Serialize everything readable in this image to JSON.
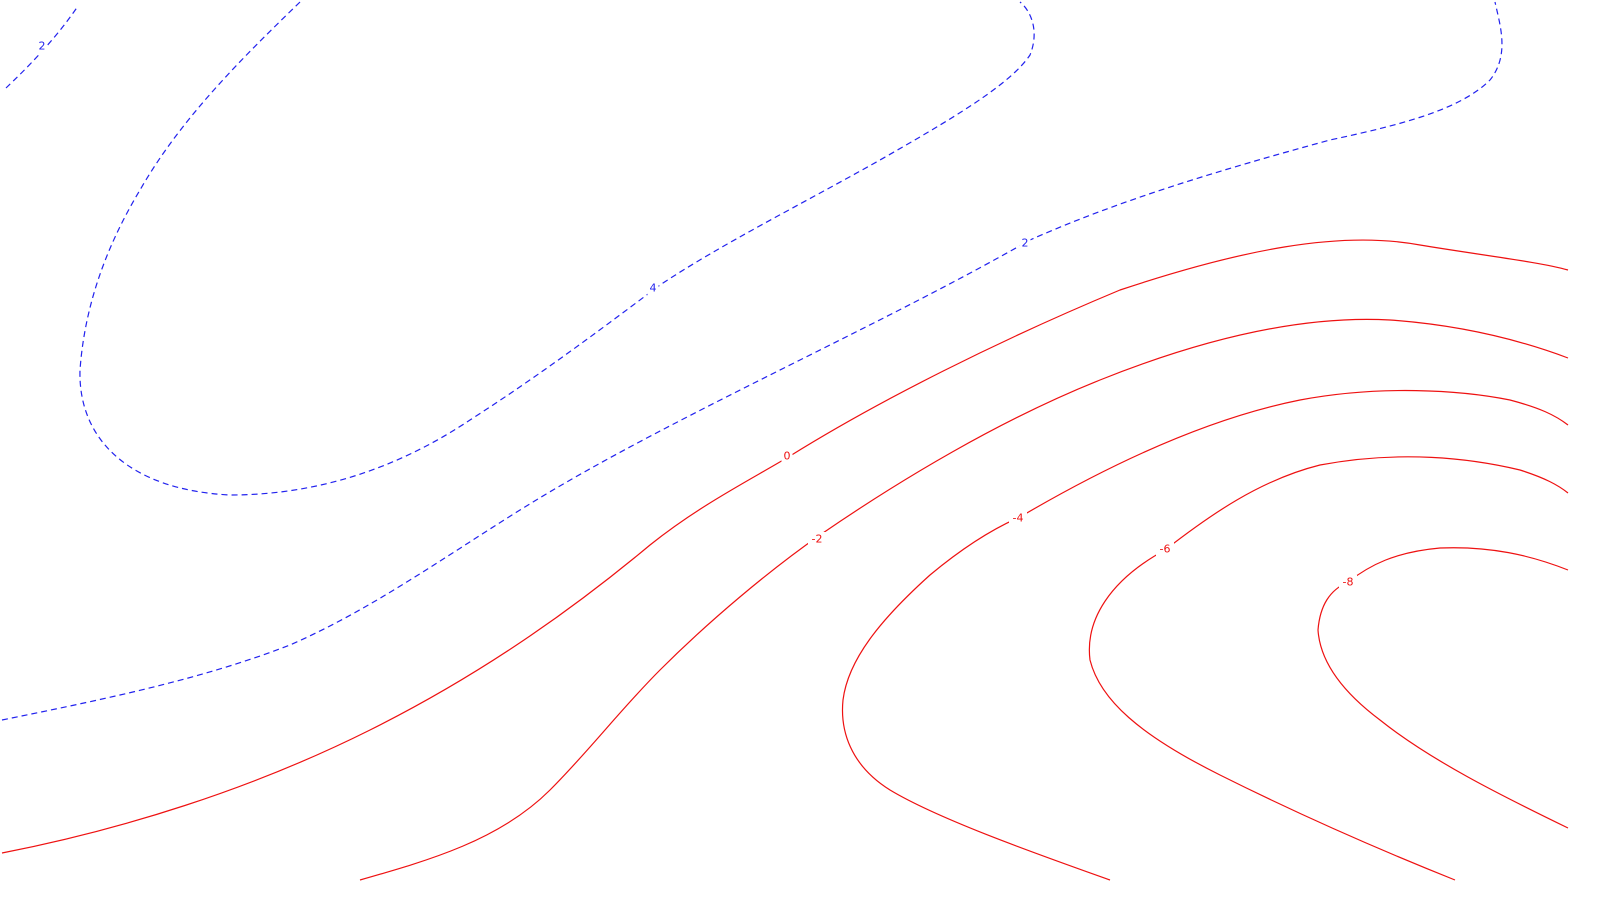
{
  "chart_data": {
    "type": "contour",
    "title": "",
    "xlabel": "",
    "ylabel": "",
    "grid": false,
    "legend": "none",
    "colors": {
      "positive": "#2222ee",
      "negative": "#ee1111"
    },
    "line_styles": {
      "positive": "dashed",
      "negative": "solid"
    },
    "contours": [
      {
        "level": 2,
        "sign": "positive",
        "label_text": "2"
      },
      {
        "level": 4,
        "sign": "positive",
        "label_text": "4"
      },
      {
        "level": 2,
        "sign": "positive",
        "label_text": "2"
      },
      {
        "level": 0,
        "sign": "negative",
        "label_text": "0"
      },
      {
        "level": -2,
        "sign": "negative",
        "label_text": "-2"
      },
      {
        "level": -4,
        "sign": "negative",
        "label_text": "-4"
      },
      {
        "level": -6,
        "sign": "negative",
        "label_text": "-6"
      },
      {
        "level": -8,
        "sign": "negative",
        "label_text": "-8"
      }
    ]
  }
}
